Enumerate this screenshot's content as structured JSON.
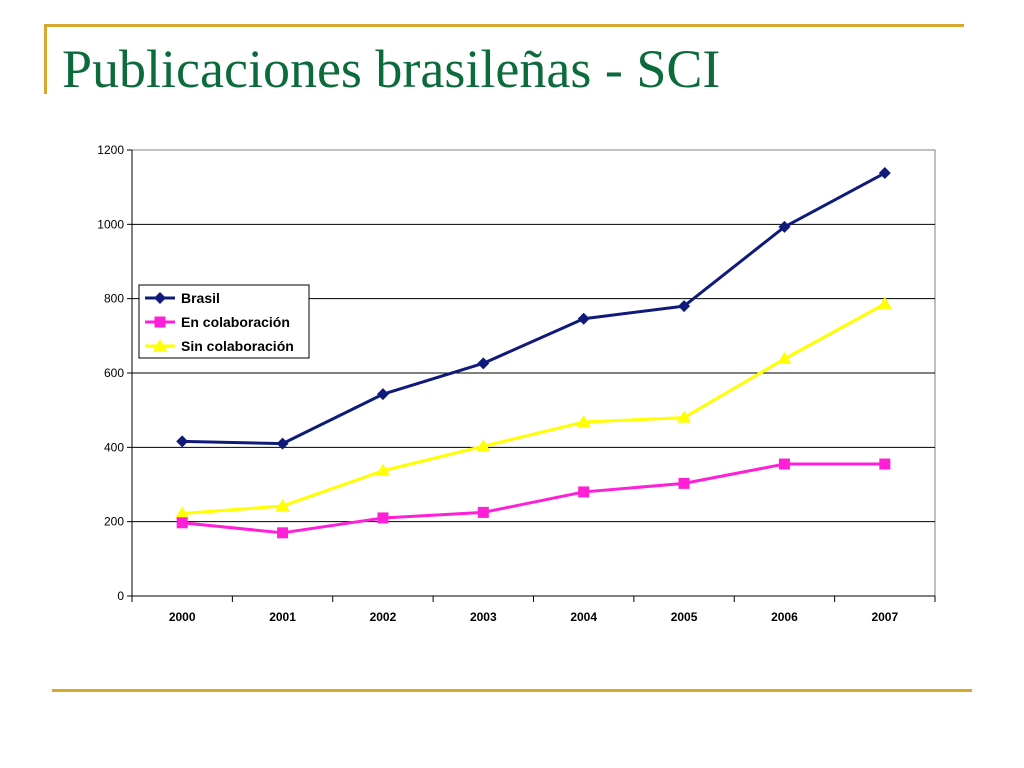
{
  "slide": {
    "title": "Publicaciones brasileñas - SCI",
    "accent_color": "#d9a62e",
    "title_color": "#0b6b3a"
  },
  "chart_data": {
    "type": "line",
    "title": "",
    "xlabel": "",
    "ylabel": "",
    "categories": [
      "2000",
      "2001",
      "2002",
      "2003",
      "2004",
      "2005",
      "2006",
      "2007"
    ],
    "ylim": [
      0,
      1200
    ],
    "yticks": [
      "0",
      "200",
      "400",
      "600",
      "800",
      "1000",
      "1200"
    ],
    "grid": true,
    "legend_position": "left, inside plot",
    "series": [
      {
        "name": "Brasil",
        "values": [
          416,
          410,
          543,
          626,
          746,
          780,
          993,
          1138
        ],
        "color": "#0f1a7a",
        "marker": "diamond"
      },
      {
        "name": "En colaboración",
        "values": [
          197,
          170,
          210,
          225,
          280,
          303,
          355,
          355
        ],
        "color": "#ff1fd6",
        "marker": "square"
      },
      {
        "name": "Sin colaboración",
        "values": [
          222,
          242,
          337,
          403,
          468,
          480,
          638,
          786
        ],
        "color": "#ffff00",
        "marker": "triangle"
      }
    ]
  }
}
